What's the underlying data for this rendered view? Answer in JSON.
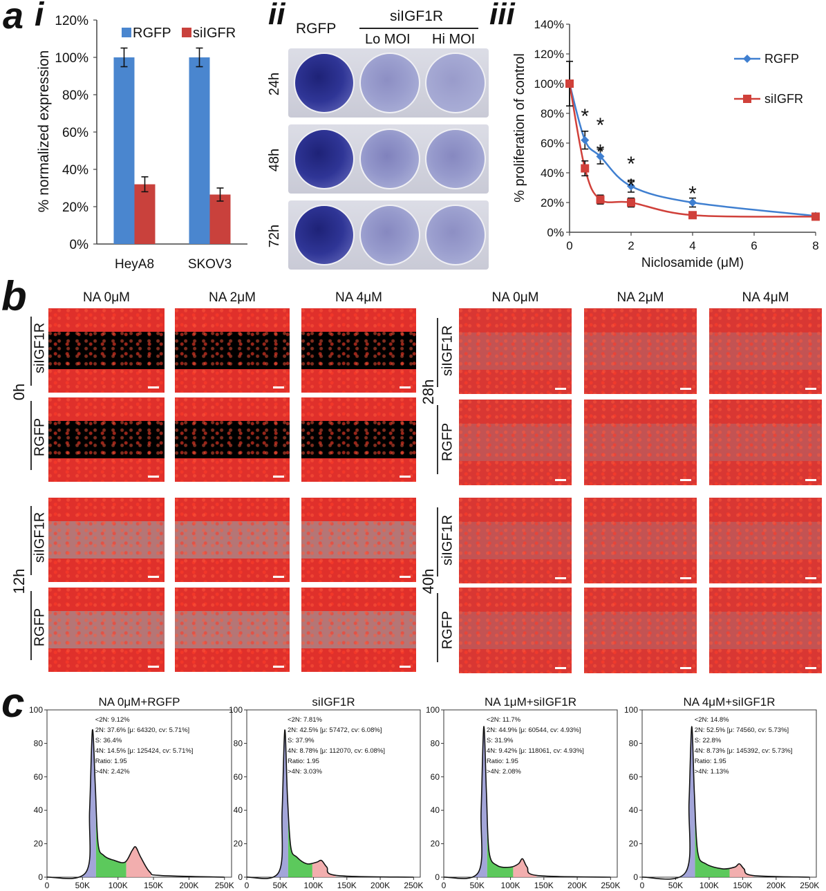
{
  "panel_a": {
    "label": "a",
    "i": {
      "label": "i",
      "legend": [
        "RGFP",
        "siIGFR"
      ],
      "colors": {
        "RGFP": "#4a86cf",
        "siIGFR": "#c9413c"
      },
      "ylabel": "% normalized expression",
      "yticks": [
        "0%",
        "20%",
        "40%",
        "60%",
        "80%",
        "100%",
        "120%"
      ],
      "categories": [
        "HeyA8",
        "SKOV3"
      ]
    },
    "ii": {
      "label": "ii",
      "rgfp": "RGFP",
      "siigf1r": "siIGF1R",
      "lo_moi": "Lo MOI",
      "hi_moi": "Hi MOI",
      "rows": [
        "24h",
        "48h",
        "72h"
      ]
    },
    "iii": {
      "label": "iii",
      "ylabel": "% proliferation of control",
      "xlabel": "Niclosamide (μM)",
      "yticks": [
        "0%",
        "20%",
        "40%",
        "60%",
        "80%",
        "100%",
        "120%",
        "140%"
      ],
      "xticks": [
        "0",
        "2",
        "4",
        "6",
        "8"
      ],
      "legend": [
        "RGFP",
        "siIGFR"
      ],
      "colors": {
        "RGFP": "#3f7fd0",
        "siIGFR": "#d0403a"
      },
      "stars": [
        "*",
        "*",
        "*",
        "*",
        "*",
        "*"
      ]
    }
  },
  "panel_b": {
    "label": "b",
    "col_heads": [
      "NA 0μM",
      "NA 2μM",
      "NA 4μM",
      "NA 0μM",
      "NA 2μM",
      "NA 4μM"
    ],
    "group_labels": [
      "siIGF1R",
      "RGFP"
    ],
    "times": [
      "0h",
      "12h",
      "28h",
      "40h"
    ]
  },
  "panel_c": {
    "label": "c",
    "titles": [
      "NA 0μM+RGFP",
      "siIGF1R",
      "NA 1μM+siIGF1R",
      "NA 4μM+siIGF1R"
    ],
    "yticks": [
      "0",
      "20",
      "40",
      "60",
      "80",
      "100"
    ],
    "xticks": [
      "0",
      "50K",
      "100K",
      "150K",
      "200K",
      "250K"
    ],
    "stats": [
      [
        "<2N: 9.12%",
        "2N: 37.6%  [μ: 64320, cv: 5.71%]",
        "S: 36.4%",
        "4N: 14.5%  [μ: 125424, cv: 5.71%]",
        "Ratio: 1.95",
        ">4N: 2.42%"
      ],
      [
        "<2N: 7.81%",
        "2N: 42.5%  [μ: 57472, cv: 6.08%]",
        "S: 37.9%",
        "4N: 8.78%  [μ: 112070, cv: 6.08%]",
        "Ratio: 1.95",
        ">4N: 3.03%"
      ],
      [
        "<2N: 11.7%",
        "2N: 44.9%  [μ: 60544, cv: 4.93%]",
        "S: 31.9%",
        "4N: 9.42%  [μ: 118061, cv: 4.93%]",
        "Ratio: 1.95",
        ">4N: 2.08%"
      ],
      [
        "<2N: 14.8%",
        "2N: 52.5%  [μ: 74560, cv: 5.73%]",
        "S: 22.8%",
        "4N: 8.73%  [μ: 145392, cv: 5.73%]",
        "Ratio: 1.95",
        ">4N: 1.13%"
      ]
    ]
  },
  "chart_data": [
    {
      "type": "bar",
      "categories": [
        "HeyA8",
        "SKOV3"
      ],
      "series": [
        {
          "name": "RGFP",
          "values": [
            100,
            100
          ],
          "errors": [
            5,
            5
          ]
        },
        {
          "name": "siIGFR",
          "values": [
            32,
            26.5
          ],
          "errors": [
            4,
            3.5
          ]
        }
      ],
      "ylabel": "% normalized expression",
      "ylim": [
        0,
        120
      ],
      "legend_position": "top"
    },
    {
      "type": "line",
      "x": [
        0,
        0.5,
        1,
        2,
        4,
        8
      ],
      "series": [
        {
          "name": "RGFP",
          "values": [
            100,
            62,
            51,
            31,
            20,
            11
          ],
          "errors": [
            15,
            6,
            5,
            4,
            3,
            1
          ]
        },
        {
          "name": "siIGFR",
          "values": [
            100,
            43,
            22,
            20,
            11.5,
            10.5
          ],
          "errors": [
            15,
            5,
            3,
            3,
            1,
            1
          ]
        }
      ],
      "xlabel": "Niclosamide (μM)",
      "ylabel": "% proliferation of control",
      "xlim": [
        0,
        8
      ],
      "ylim": [
        0,
        140
      ],
      "legend_position": "top-right"
    },
    {
      "type": "area",
      "title": "NA 0μM+RGFP",
      "x": [
        0,
        55,
        60,
        64,
        68,
        72,
        80,
        95,
        110,
        120,
        125,
        132,
        145,
        160,
        250
      ],
      "y": [
        0,
        3,
        40,
        88,
        55,
        20,
        13,
        10,
        9,
        16,
        18,
        12,
        3,
        1,
        0
      ],
      "xlim": [
        0,
        260
      ],
      "ylim": [
        0,
        100
      ]
    },
    {
      "type": "area",
      "title": "siIGF1R",
      "x": [
        0,
        48,
        53,
        57,
        61,
        66,
        75,
        90,
        105,
        112,
        120,
        135,
        250
      ],
      "y": [
        0,
        3,
        40,
        88,
        48,
        18,
        12,
        8,
        9,
        10,
        6,
        1,
        0
      ],
      "xlim": [
        0,
        260
      ],
      "ylim": [
        0,
        100
      ]
    },
    {
      "type": "area",
      "title": "NA 1μM+siIGF1R",
      "x": [
        0,
        52,
        56,
        60,
        64,
        68,
        80,
        100,
        112,
        118,
        125,
        140,
        250
      ],
      "y": [
        0,
        3,
        40,
        90,
        50,
        15,
        7,
        6,
        8,
        11,
        6,
        1,
        0
      ],
      "xlim": [
        0,
        260
      ],
      "ylim": [
        0,
        100
      ]
    },
    {
      "type": "area",
      "title": "NA 4μM+siIGF1R",
      "x": [
        0,
        65,
        70,
        74,
        78,
        83,
        95,
        120,
        138,
        145,
        152,
        165,
        250
      ],
      "y": [
        0,
        3,
        45,
        90,
        50,
        15,
        8,
        5,
        6,
        8,
        5,
        1,
        0
      ],
      "xlim": [
        0,
        260
      ],
      "ylim": [
        0,
        100
      ]
    }
  ]
}
